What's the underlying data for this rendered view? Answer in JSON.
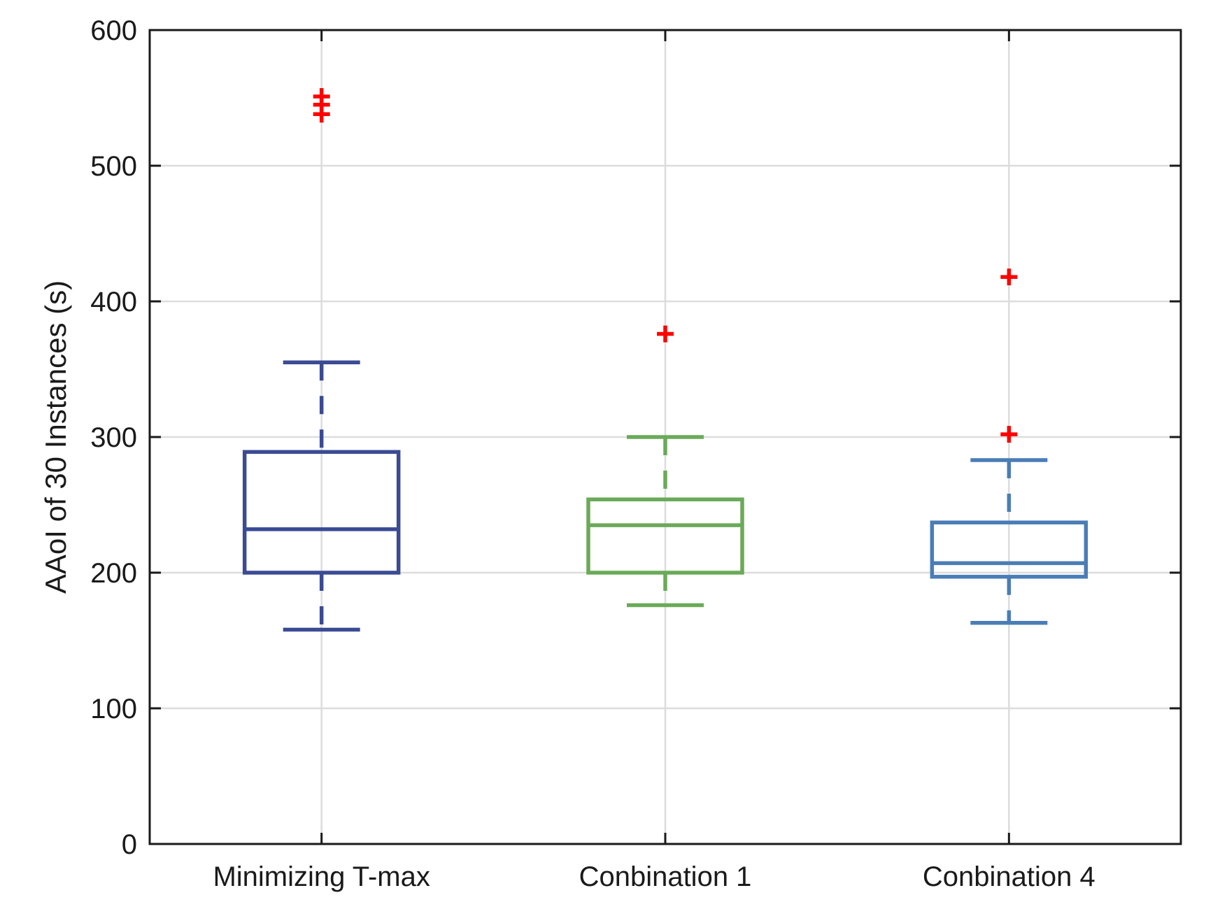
{
  "chart_data": {
    "type": "box",
    "title": "",
    "xlabel": "",
    "ylabel": "AAoI of 30 Instances (s)",
    "ylim": [
      0,
      600
    ],
    "yticks": [
      0,
      100,
      200,
      300,
      400,
      500,
      600
    ],
    "grid": true,
    "categories": [
      "Minimizing T-max",
      "Conbination 1",
      "Conbination 4"
    ],
    "boxes": [
      {
        "name": "Minimizing T-max",
        "color": "#3a4b94",
        "whisker_low": 158,
        "q1": 200,
        "median": 232,
        "q3": 289,
        "whisker_high": 355,
        "outliers": [
          538,
          545,
          551
        ]
      },
      {
        "name": "Conbination 1",
        "color": "#6aaa58",
        "whisker_low": 176,
        "q1": 200,
        "median": 235,
        "q3": 254,
        "whisker_high": 300,
        "outliers": [
          376
        ]
      },
      {
        "name": "Conbination 4",
        "color": "#4a7db6",
        "whisker_low": 163,
        "q1": 197,
        "median": 207,
        "q3": 237,
        "whisker_high": 283,
        "outliers": [
          302,
          418
        ]
      }
    ],
    "outlier_color": "#ff0000"
  }
}
